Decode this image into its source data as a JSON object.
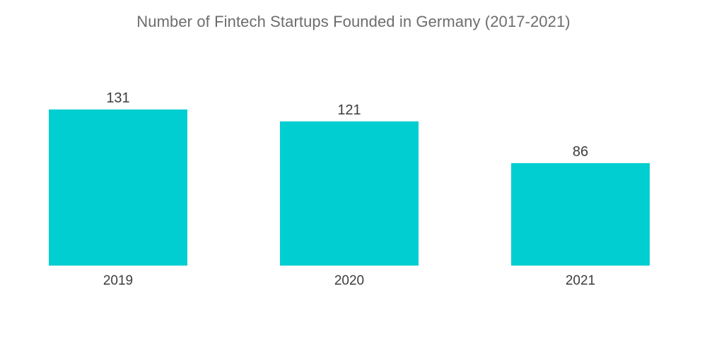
{
  "chart_data": {
    "type": "bar",
    "title": "Number of Fintech Startups Founded in Germany (2017-2021)",
    "categories": [
      "2019",
      "2020",
      "2021"
    ],
    "values": [
      131,
      121,
      86
    ],
    "ylim": [
      0,
      131
    ],
    "grid": false,
    "legend": "none",
    "bar_color": "#00ced1",
    "data_labels": true
  }
}
